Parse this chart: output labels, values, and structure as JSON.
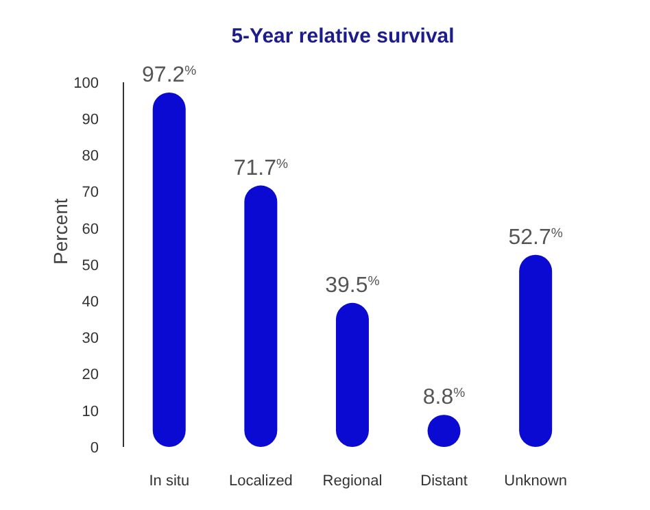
{
  "chart_data": {
    "type": "bar",
    "title": "5-Year relative survival",
    "ylabel": "Percent",
    "categories": [
      "In situ",
      "Localized",
      "Regional",
      "Distant",
      "Unknown"
    ],
    "values": [
      97.2,
      71.7,
      39.5,
      8.8,
      52.7
    ],
    "color": "#0a0ad2",
    "value_labels": [
      "97.2$^{%}$",
      "71.7$^{%}$",
      "39.5$^{%}$",
      "8.8$^{%}$",
      "52.7$^{%}$"
    ],
    "ylim": [
      0,
      100
    ],
    "yticks": [
      0,
      10,
      20,
      30,
      40,
      50,
      60,
      70,
      80,
      90,
      100
    ],
    "grid": false,
    "legend": false
  }
}
